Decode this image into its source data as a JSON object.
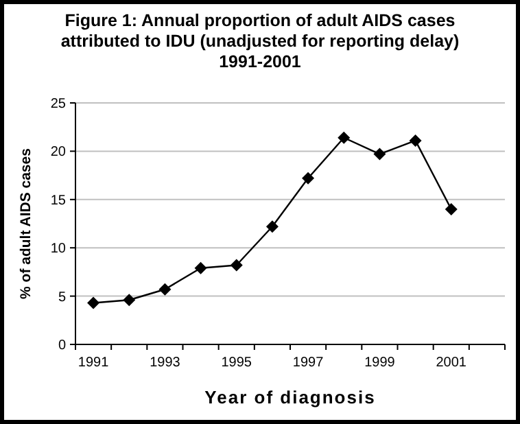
{
  "chart_data": {
    "type": "line",
    "title": "Figure 1: Annual proportion of adult AIDS cases attributed to IDU (unadjusted for reporting delay) 1991-2001",
    "xlabel": "Year of diagnosis",
    "ylabel": "% of adult AIDS cases",
    "categories": [
      "1991",
      null,
      "1993",
      null,
      "1995",
      null,
      "1997",
      null,
      "1999",
      null,
      "2001",
      null
    ],
    "series": [
      {
        "color": "#000000",
        "values": [
          4.3,
          4.6,
          5.7,
          7.9,
          8.2,
          12.2,
          17.2,
          21.4,
          19.7,
          21.1,
          14.0,
          null
        ]
      }
    ],
    "ylim": [
      0,
      25
    ],
    "yticks": [
      0,
      5,
      10,
      15,
      20,
      25
    ],
    "grid": "y",
    "marker": "diamond",
    "line_style": "solid"
  }
}
